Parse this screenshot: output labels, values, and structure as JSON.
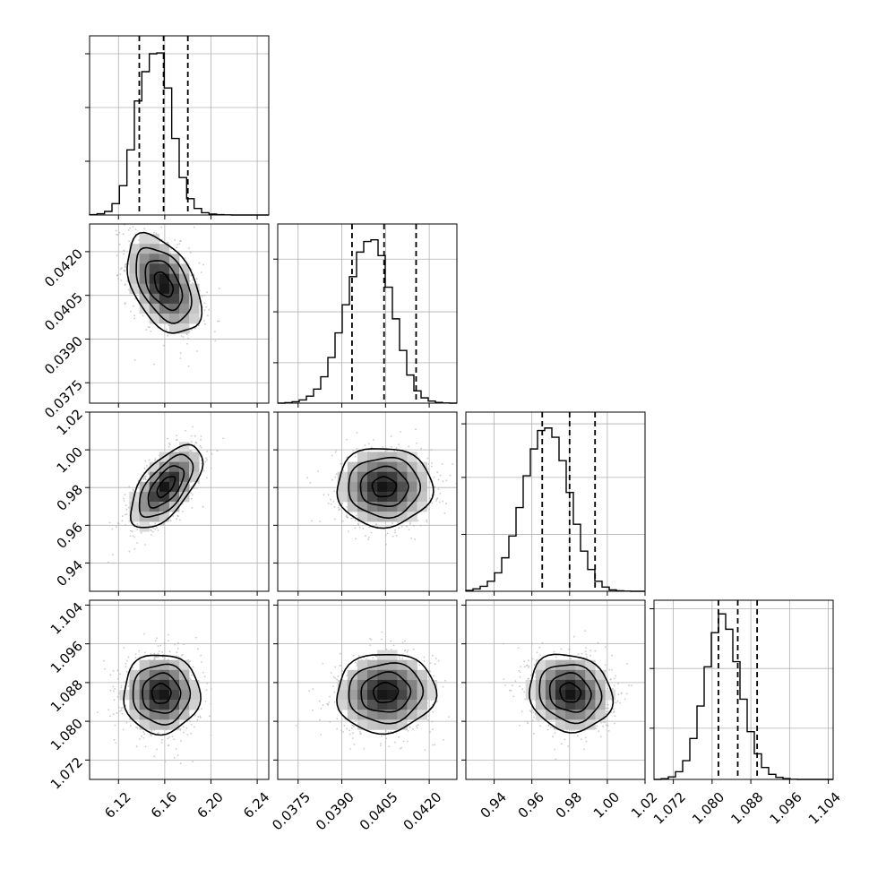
{
  "chart_data": {
    "type": "corner",
    "variables": [
      {
        "range": [
          6.095,
          6.25
        ],
        "ticks": [
          6.12,
          6.16,
          6.2,
          6.24
        ],
        "tick_labels": [
          "6.12",
          "6.16",
          "6.20",
          "6.24"
        ],
        "quantiles": [
          6.138,
          6.159,
          6.18
        ],
        "hist_bins": [
          6.095,
          6.25,
          24
        ],
        "hist_counts": [
          2,
          8,
          22,
          70,
          180,
          400,
          700,
          880,
          990,
          995,
          780,
          470,
          230,
          100,
          40,
          14,
          6,
          2,
          1,
          0,
          0,
          0,
          0,
          0
        ],
        "hist_ylim": [
          0,
          1100
        ],
        "hist_grid": [
          330,
          660,
          990
        ]
      },
      {
        "range": [
          0.0368,
          0.04295
        ],
        "ticks": [
          0.0375,
          0.039,
          0.0405,
          0.042
        ],
        "tick_labels": [
          "0.0375",
          "0.0390",
          "0.0405",
          "0.0420"
        ],
        "quantiles": [
          0.03935,
          0.04045,
          0.04155
        ],
        "hist_bins": [
          0.0368,
          0.04295,
          25
        ],
        "hist_counts": [
          0,
          3,
          8,
          18,
          40,
          80,
          150,
          260,
          400,
          560,
          720,
          860,
          920,
          930,
          840,
          660,
          480,
          300,
          160,
          70,
          30,
          12,
          4,
          1,
          0
        ],
        "hist_ylim": [
          0,
          1020
        ],
        "hist_grid": [
          230,
          520,
          820
        ]
      },
      {
        "range": [
          0.925,
          1.02
        ],
        "ticks": [
          0.94,
          0.96,
          0.98,
          1.0,
          1.02
        ],
        "tick_labels": [
          "0.94",
          "0.96",
          "0.98",
          "1.00",
          "1.02"
        ],
        "quantiles": [
          0.9655,
          0.98,
          0.9935
        ],
        "hist_bins": [
          0.925,
          1.02,
          25
        ],
        "hist_counts": [
          5,
          14,
          30,
          60,
          110,
          200,
          330,
          500,
          690,
          850,
          960,
          975,
          920,
          780,
          590,
          400,
          240,
          130,
          60,
          25,
          8,
          3,
          1,
          0,
          0
        ],
        "hist_ylim": [
          0,
          1070
        ],
        "hist_grid": [
          340,
          680,
          1000
        ]
      },
      {
        "range": [
          1.068,
          1.105
        ],
        "ticks": [
          1.072,
          1.08,
          1.088,
          1.096,
          1.104
        ],
        "tick_labels": [
          "1.072",
          "1.080",
          "1.088",
          "1.096",
          "1.104"
        ],
        "quantiles": [
          1.0813,
          1.0853,
          1.0893
        ],
        "hist_bins": [
          1.068,
          1.105,
          25
        ],
        "hist_counts": [
          0,
          4,
          15,
          45,
          110,
          240,
          430,
          660,
          860,
          970,
          880,
          690,
          470,
          280,
          150,
          70,
          30,
          12,
          5,
          1,
          0,
          0,
          0,
          0,
          0
        ],
        "hist_ylim": [
          0,
          1050
        ],
        "hist_grid": [
          300,
          650,
          1000
        ]
      }
    ],
    "panels": [
      {
        "row": 1,
        "col": 0,
        "center": [
          6.159,
          0.04087
        ],
        "sigma": [
          0.016,
          0.00085
        ],
        "rho": -0.45
      },
      {
        "row": 2,
        "col": 0,
        "center": [
          6.161,
          0.9805
        ],
        "sigma": [
          0.0155,
          0.011
        ],
        "rho": 0.62
      },
      {
        "row": 2,
        "col": 1,
        "center": [
          0.04045,
          0.9803
        ],
        "sigma": [
          0.00082,
          0.0105
        ],
        "rho": 0.0
      },
      {
        "row": 3,
        "col": 0,
        "center": [
          6.157,
          1.0857
        ],
        "sigma": [
          0.0165,
          0.0041
        ],
        "rho": 0.0
      },
      {
        "row": 3,
        "col": 1,
        "center": [
          0.0405,
          1.0859
        ],
        "sigma": [
          0.00085,
          0.0041
        ],
        "rho": 0.05
      },
      {
        "row": 3,
        "col": 2,
        "center": [
          0.9803,
          1.0859
        ],
        "sigma": [
          0.011,
          0.004
        ],
        "rho": -0.12
      }
    ],
    "contour_levels_sigma": [
      0.5,
      1.0,
      1.5,
      2.0
    ],
    "grid": true,
    "colors": {
      "hist_line": "#000000",
      "quantile_line": "#000000",
      "contour": "#000000",
      "scatter": "#b3b3b3",
      "grid": "#b0b0b0"
    }
  }
}
